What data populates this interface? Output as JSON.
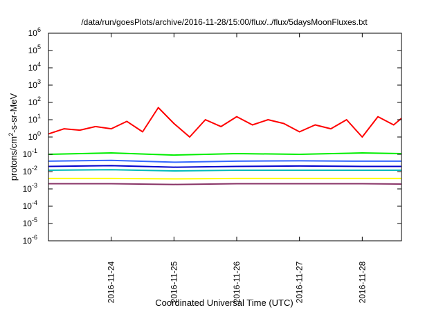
{
  "chart_data": {
    "type": "line",
    "title": "/data/run/goesPlots/archive/2016-11-28/15:00/flux/../flux/5daysMoonFluxes.txt",
    "xlabel": "Coordinated Universal Time (UTC)",
    "ylabel": {
      "base": "protons/cm",
      "sup": "2",
      "rest": "-s-sr-MeV"
    },
    "yscale": "log",
    "ylim_exp": [
      -6,
      6
    ],
    "y_tick_exponents": [
      -6,
      -5,
      -4,
      -3,
      -2,
      -1,
      0,
      1,
      2,
      3,
      4,
      5,
      6
    ],
    "y_tick_base": "10",
    "xlim": [
      "2016-11-23 00:00",
      "2016-11-28 15:00"
    ],
    "x_ticks": [
      "2016-11-24",
      "2016-11-25",
      "2016-11-26",
      "2016-11-27",
      "2016-11-28"
    ],
    "x_tick_times": [
      "2016-11-24 00:00",
      "2016-11-25 00:00",
      "2016-11-26 00:00",
      "2016-11-27 00:00",
      "2016-11-28 00:00"
    ],
    "grid": false,
    "series": [
      {
        "color": "#ff0000",
        "times": [
          "2016-11-23 00:00",
          "2016-11-23 06:00",
          "2016-11-23 12:00",
          "2016-11-23 18:00",
          "2016-11-24 00:00",
          "2016-11-24 06:00",
          "2016-11-24 12:00",
          "2016-11-24 18:00",
          "2016-11-25 00:00",
          "2016-11-25 06:00",
          "2016-11-25 12:00",
          "2016-11-25 18:00",
          "2016-11-26 00:00",
          "2016-11-26 06:00",
          "2016-11-26 12:00",
          "2016-11-26 18:00",
          "2016-11-27 00:00",
          "2016-11-27 06:00",
          "2016-11-27 12:00",
          "2016-11-27 18:00",
          "2016-11-28 00:00",
          "2016-11-28 06:00",
          "2016-11-28 12:00",
          "2016-11-28 15:00"
        ],
        "values": [
          1.5,
          3,
          2.5,
          4,
          3,
          8,
          2,
          50,
          6,
          1,
          10,
          4,
          15,
          5,
          10,
          6,
          2,
          5,
          3,
          10,
          1,
          15,
          5,
          12
        ]
      },
      {
        "color": "#00ee00",
        "times": [
          "2016-11-23 00:00",
          "2016-11-24 00:00",
          "2016-11-25 00:00",
          "2016-11-26 00:00",
          "2016-11-27 00:00",
          "2016-11-28 00:00",
          "2016-11-28 15:00"
        ],
        "values": [
          0.1,
          0.12,
          0.09,
          0.11,
          0.1,
          0.12,
          0.11
        ]
      },
      {
        "color": "#3366ff",
        "times": [
          "2016-11-23 00:00",
          "2016-11-24 00:00",
          "2016-11-25 00:00",
          "2016-11-26 00:00",
          "2016-11-27 00:00",
          "2016-11-28 00:00",
          "2016-11-28 15:00"
        ],
        "values": [
          0.04,
          0.045,
          0.035,
          0.04,
          0.042,
          0.04,
          0.04
        ]
      },
      {
        "color": "#0000cc",
        "times": [
          "2016-11-23 00:00",
          "2016-11-24 00:00",
          "2016-11-25 00:00",
          "2016-11-26 00:00",
          "2016-11-27 00:00",
          "2016-11-28 00:00",
          "2016-11-28 15:00"
        ],
        "values": [
          0.02,
          0.022,
          0.018,
          0.02,
          0.021,
          0.02,
          0.02
        ]
      },
      {
        "color": "#00bbbb",
        "times": [
          "2016-11-23 00:00",
          "2016-11-24 00:00",
          "2016-11-25 00:00",
          "2016-11-26 00:00",
          "2016-11-27 00:00",
          "2016-11-28 00:00",
          "2016-11-28 15:00"
        ],
        "values": [
          0.012,
          0.013,
          0.011,
          0.012,
          0.012,
          0.012,
          0.012
        ]
      },
      {
        "color": "#ffff00",
        "times": [
          "2016-11-23 00:00",
          "2016-11-24 00:00",
          "2016-11-25 00:00",
          "2016-11-26 00:00",
          "2016-11-27 00:00",
          "2016-11-28 00:00",
          "2016-11-28 15:00"
        ],
        "values": [
          0.004,
          0.004,
          0.0038,
          0.004,
          0.004,
          0.004,
          0.004
        ]
      },
      {
        "color": "#883366",
        "times": [
          "2016-11-23 00:00",
          "2016-11-24 00:00",
          "2016-11-25 00:00",
          "2016-11-26 00:00",
          "2016-11-27 00:00",
          "2016-11-28 00:00",
          "2016-11-28 15:00"
        ],
        "values": [
          0.002,
          0.002,
          0.0018,
          0.002,
          0.002,
          0.002,
          0.0019
        ]
      }
    ]
  }
}
